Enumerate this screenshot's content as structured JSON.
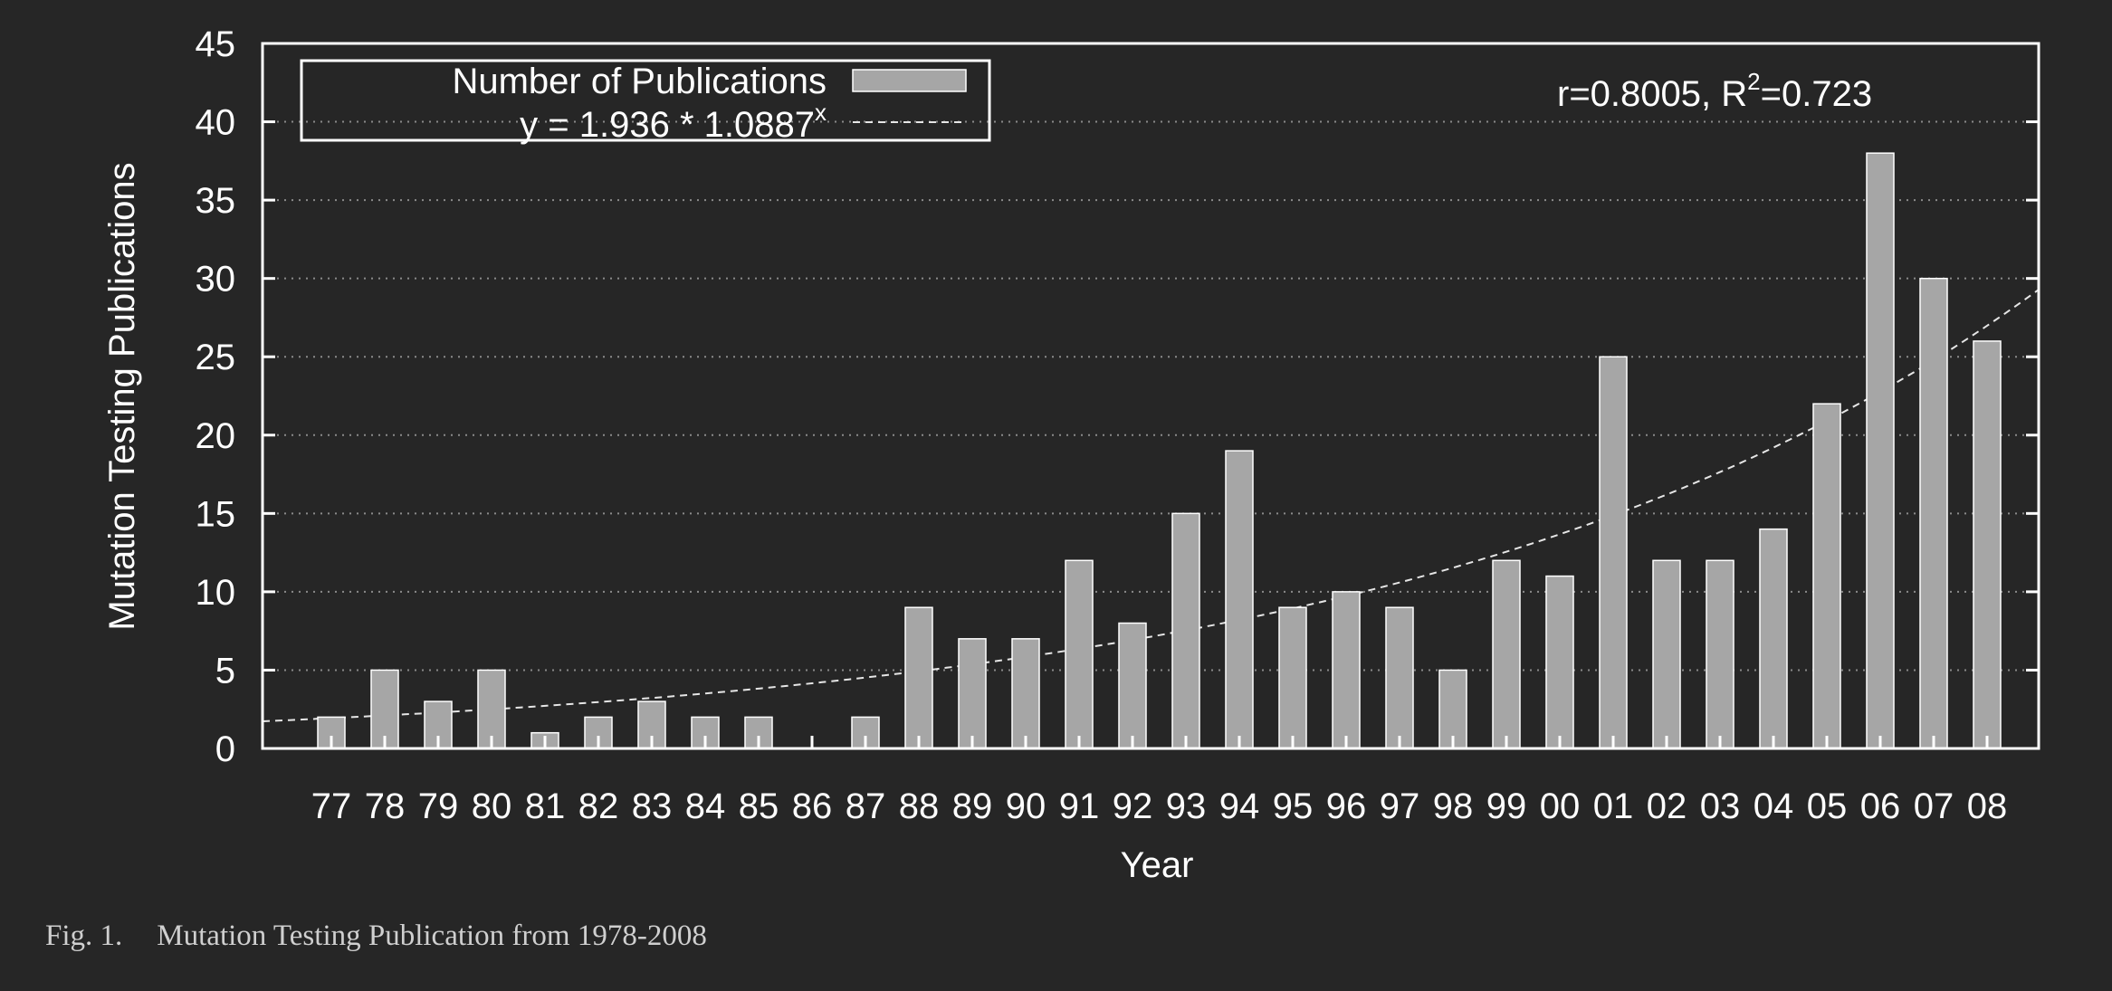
{
  "chart_data": {
    "type": "bar",
    "xlabel": "Year",
    "ylabel": "Mutation Testing Publications",
    "ylim": [
      0,
      45
    ],
    "yticks": [
      0,
      5,
      10,
      15,
      20,
      25,
      30,
      35,
      40,
      45
    ],
    "grid": "horizontal-dotted",
    "legend_position": "top-left",
    "categories": [
      "77",
      "78",
      "79",
      "80",
      "81",
      "82",
      "83",
      "84",
      "85",
      "86",
      "87",
      "88",
      "89",
      "90",
      "91",
      "92",
      "93",
      "94",
      "95",
      "96",
      "97",
      "98",
      "99",
      "00",
      "01",
      "02",
      "03",
      "04",
      "05",
      "06",
      "07",
      "08"
    ],
    "series": [
      {
        "name": "Number of Publications",
        "values": [
          2,
          5,
          3,
          5,
          1,
          2,
          3,
          2,
          2,
          0,
          2,
          9,
          7,
          7,
          12,
          8,
          15,
          19,
          9,
          10,
          9,
          5,
          12,
          11,
          25,
          12,
          12,
          14,
          22,
          38,
          30,
          26
        ],
        "color": "#a6a6a6"
      }
    ],
    "fit": {
      "label_prefix": "y = 1.936 * 1.0887",
      "label_sup": "x",
      "a": 1.936,
      "b": 1.0887,
      "style": "dashed"
    },
    "stats": {
      "prefix": "r=0.8005, R",
      "sup": "2",
      "suffix": "=0.723"
    }
  },
  "caption": {
    "fig": "Fig. 1.",
    "text": "Mutation Testing Publication from 1978-2008"
  }
}
